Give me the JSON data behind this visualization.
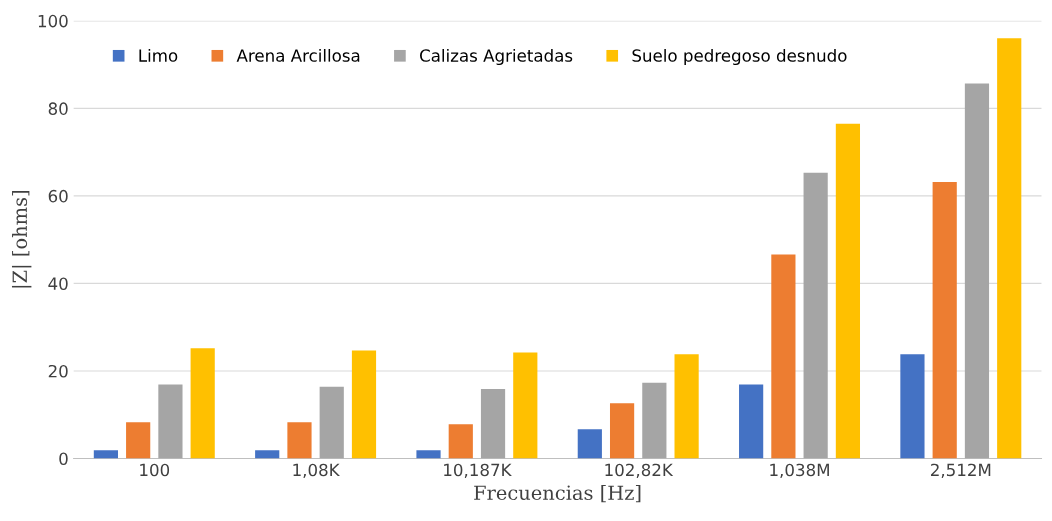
{
  "chart_data": {
    "type": "bar",
    "xlabel": "Frecuencias [Hz]",
    "ylabel": "|Z| [ohms]",
    "categories": [
      "100",
      "1,08K",
      "10,187K",
      "102,82K",
      "1,038M",
      "2,512M"
    ],
    "series": [
      {
        "name": "Limo",
        "color": "#4472c4",
        "values": [
          1.9,
          1.9,
          1.9,
          6.7,
          16.9,
          23.8
        ]
      },
      {
        "name": "Arena Arcillosa",
        "color": "#ed7d31",
        "values": [
          8.3,
          8.3,
          7.8,
          12.6,
          46.6,
          63.2
        ]
      },
      {
        "name": "Calizas Agrietadas",
        "color": "#a5a5a5",
        "values": [
          16.9,
          16.4,
          15.9,
          17.3,
          65.3,
          85.7
        ]
      },
      {
        "name": "Suelo pedregoso desnudo",
        "color": "#ffc000",
        "values": [
          25.2,
          24.7,
          24.2,
          23.8,
          76.5,
          96.0
        ]
      }
    ],
    "ylim": [
      0,
      100
    ],
    "yticks": [
      0,
      20,
      40,
      60,
      80,
      100
    ],
    "grid": "y",
    "legend": "top"
  }
}
